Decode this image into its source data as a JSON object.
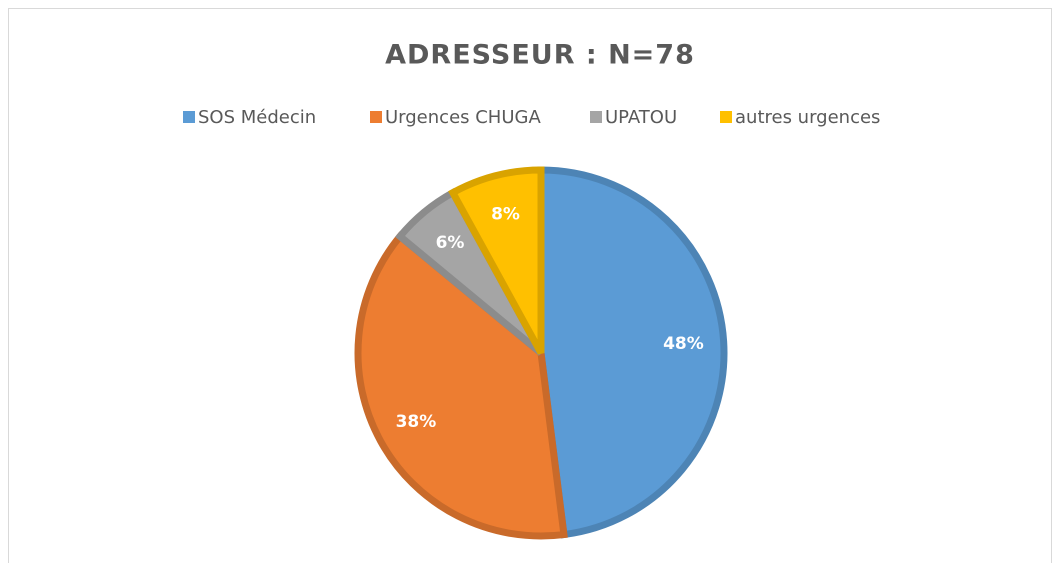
{
  "chart_data": {
    "type": "pie",
    "title": "ADRESSEUR : N=78",
    "categories": [
      "SOS Médecin",
      "Urgences CHUGA",
      "UPATOU",
      "autres urgences"
    ],
    "values": [
      48,
      38,
      6,
      8
    ],
    "value_labels": [
      "48%",
      "38%",
      "6%",
      "8%"
    ],
    "colors": [
      "#5b9bd5",
      "#ed7d31",
      "#a5a5a5",
      "#ffc000"
    ],
    "legend": "top"
  }
}
